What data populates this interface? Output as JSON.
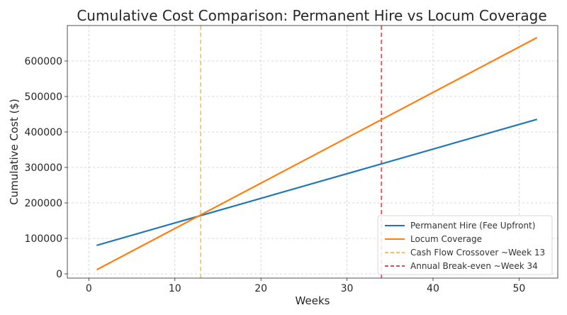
{
  "chart_data": {
    "type": "line",
    "title": "Cumulative Cost Comparison: Permanent Hire vs Locum Coverage",
    "xlabel": "Weeks",
    "ylabel": "Cumulative Cost ($)",
    "xlim": [
      -2.5,
      54.5
    ],
    "ylim": [
      -12000,
      700000
    ],
    "xticks": [
      0,
      10,
      20,
      30,
      40,
      50
    ],
    "yticks": [
      0,
      100000,
      200000,
      300000,
      400000,
      500000,
      600000
    ],
    "ytick_labels": [
      "0",
      "100000",
      "200000",
      "300000",
      "400000",
      "500000",
      "600000"
    ],
    "xtick_labels": [
      "0",
      "10",
      "20",
      "30",
      "40",
      "50"
    ],
    "grid": true,
    "legend_position": "bottom-right",
    "series": [
      {
        "name": "Permanent Hire (Fee Upfront)",
        "color": "#1f77b4",
        "style": "solid",
        "x": [
          1,
          52
        ],
        "y": [
          81000,
          435000
        ]
      },
      {
        "name": "Locum Coverage",
        "color": "#ff7f0e",
        "style": "solid",
        "x": [
          1,
          52
        ],
        "y": [
          12800,
          665000
        ]
      }
    ],
    "vlines": [
      {
        "name": "Cash Flow Crossover ~Week 13",
        "x": 13,
        "color": "#ffbe4d",
        "style": "dashed"
      },
      {
        "name": "Annual Break-even ~Week 34",
        "x": 34,
        "color": "#e8484b",
        "style": "dashed"
      }
    ]
  }
}
